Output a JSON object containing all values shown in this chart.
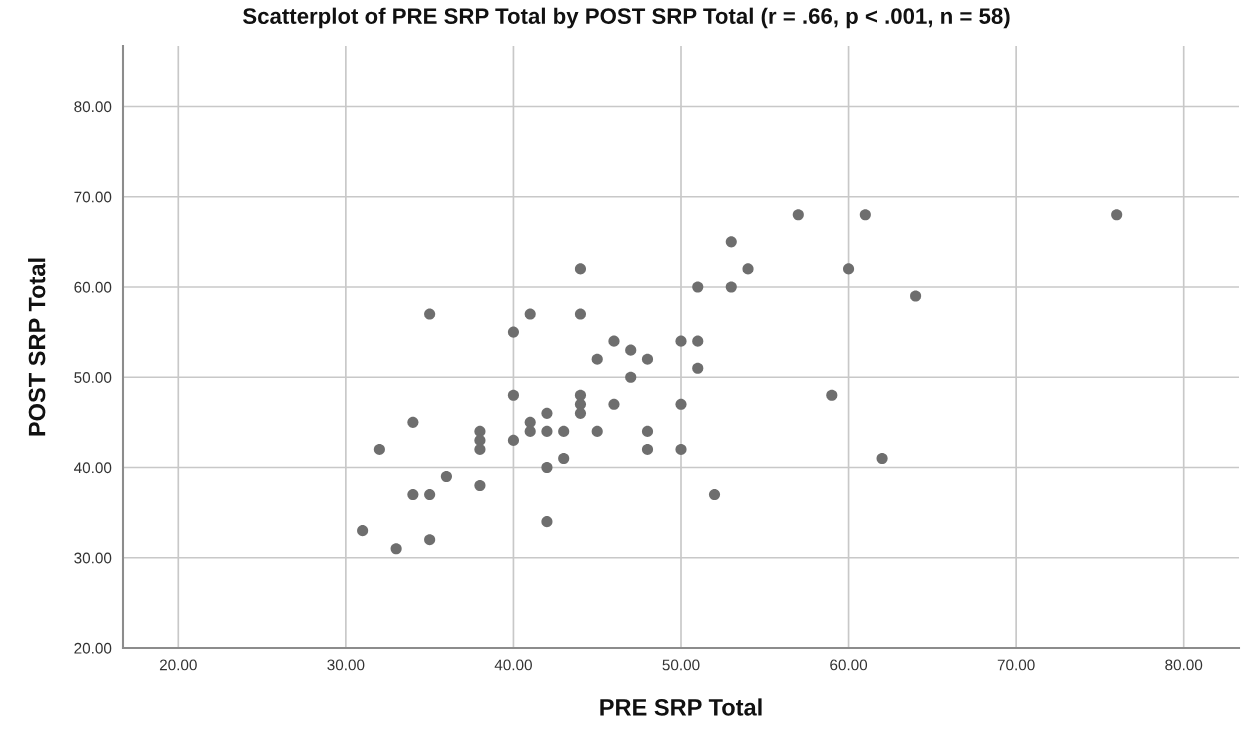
{
  "chart_data": {
    "type": "scatter",
    "title": "Scatterplot of PRE SRP Total by POST SRP Total (r = .66, p < .001, n = 58)",
    "xlabel": "PRE SRP Total",
    "ylabel": "POST SRP Total",
    "x": [
      31,
      32,
      33,
      34,
      34,
      35,
      35,
      35,
      36,
      38,
      38,
      38,
      38,
      40,
      40,
      40,
      41,
      41,
      41,
      42,
      42,
      42,
      42,
      43,
      43,
      44,
      44,
      44,
      44,
      44,
      45,
      45,
      46,
      46,
      47,
      47,
      48,
      48,
      48,
      50,
      50,
      50,
      51,
      51,
      51,
      52,
      53,
      53,
      54,
      57,
      59,
      60,
      61,
      62,
      64,
      76
    ],
    "series": [
      {
        "color": "#6e6e6e",
        "values": [
          33,
          42,
          31,
          45,
          37,
          57,
          37,
          32,
          39,
          44,
          43,
          42,
          38,
          55,
          48,
          43,
          57,
          45,
          44,
          46,
          44,
          40,
          34,
          44,
          41,
          62,
          57,
          48,
          47,
          46,
          52,
          44,
          54,
          47,
          53,
          50,
          52,
          44,
          42,
          54,
          47,
          42,
          60,
          54,
          51,
          37,
          65,
          60,
          62,
          68,
          48,
          62,
          68,
          41,
          59,
          68
        ]
      }
    ],
    "xlim": [
      16.7,
      83.3
    ],
    "ylim": [
      20,
      86.7
    ],
    "xticks": [
      {
        "value": 20,
        "label": "20.00"
      },
      {
        "value": 30,
        "label": "30.00"
      },
      {
        "value": 40,
        "label": "40.00"
      },
      {
        "value": 50,
        "label": "50.00"
      },
      {
        "value": 60,
        "label": "60.00"
      },
      {
        "value": 70,
        "label": "70.00"
      },
      {
        "value": 80,
        "label": "80.00"
      }
    ],
    "yticks": [
      {
        "value": 20,
        "label": "20.00"
      },
      {
        "value": 30,
        "label": "30.00"
      },
      {
        "value": 40,
        "label": "40.00"
      },
      {
        "value": 50,
        "label": "50.00"
      },
      {
        "value": 60,
        "label": "60.00"
      },
      {
        "value": 70,
        "label": "70.00"
      },
      {
        "value": 80,
        "label": "80.00"
      }
    ],
    "grid": true,
    "marker": "circle"
  }
}
